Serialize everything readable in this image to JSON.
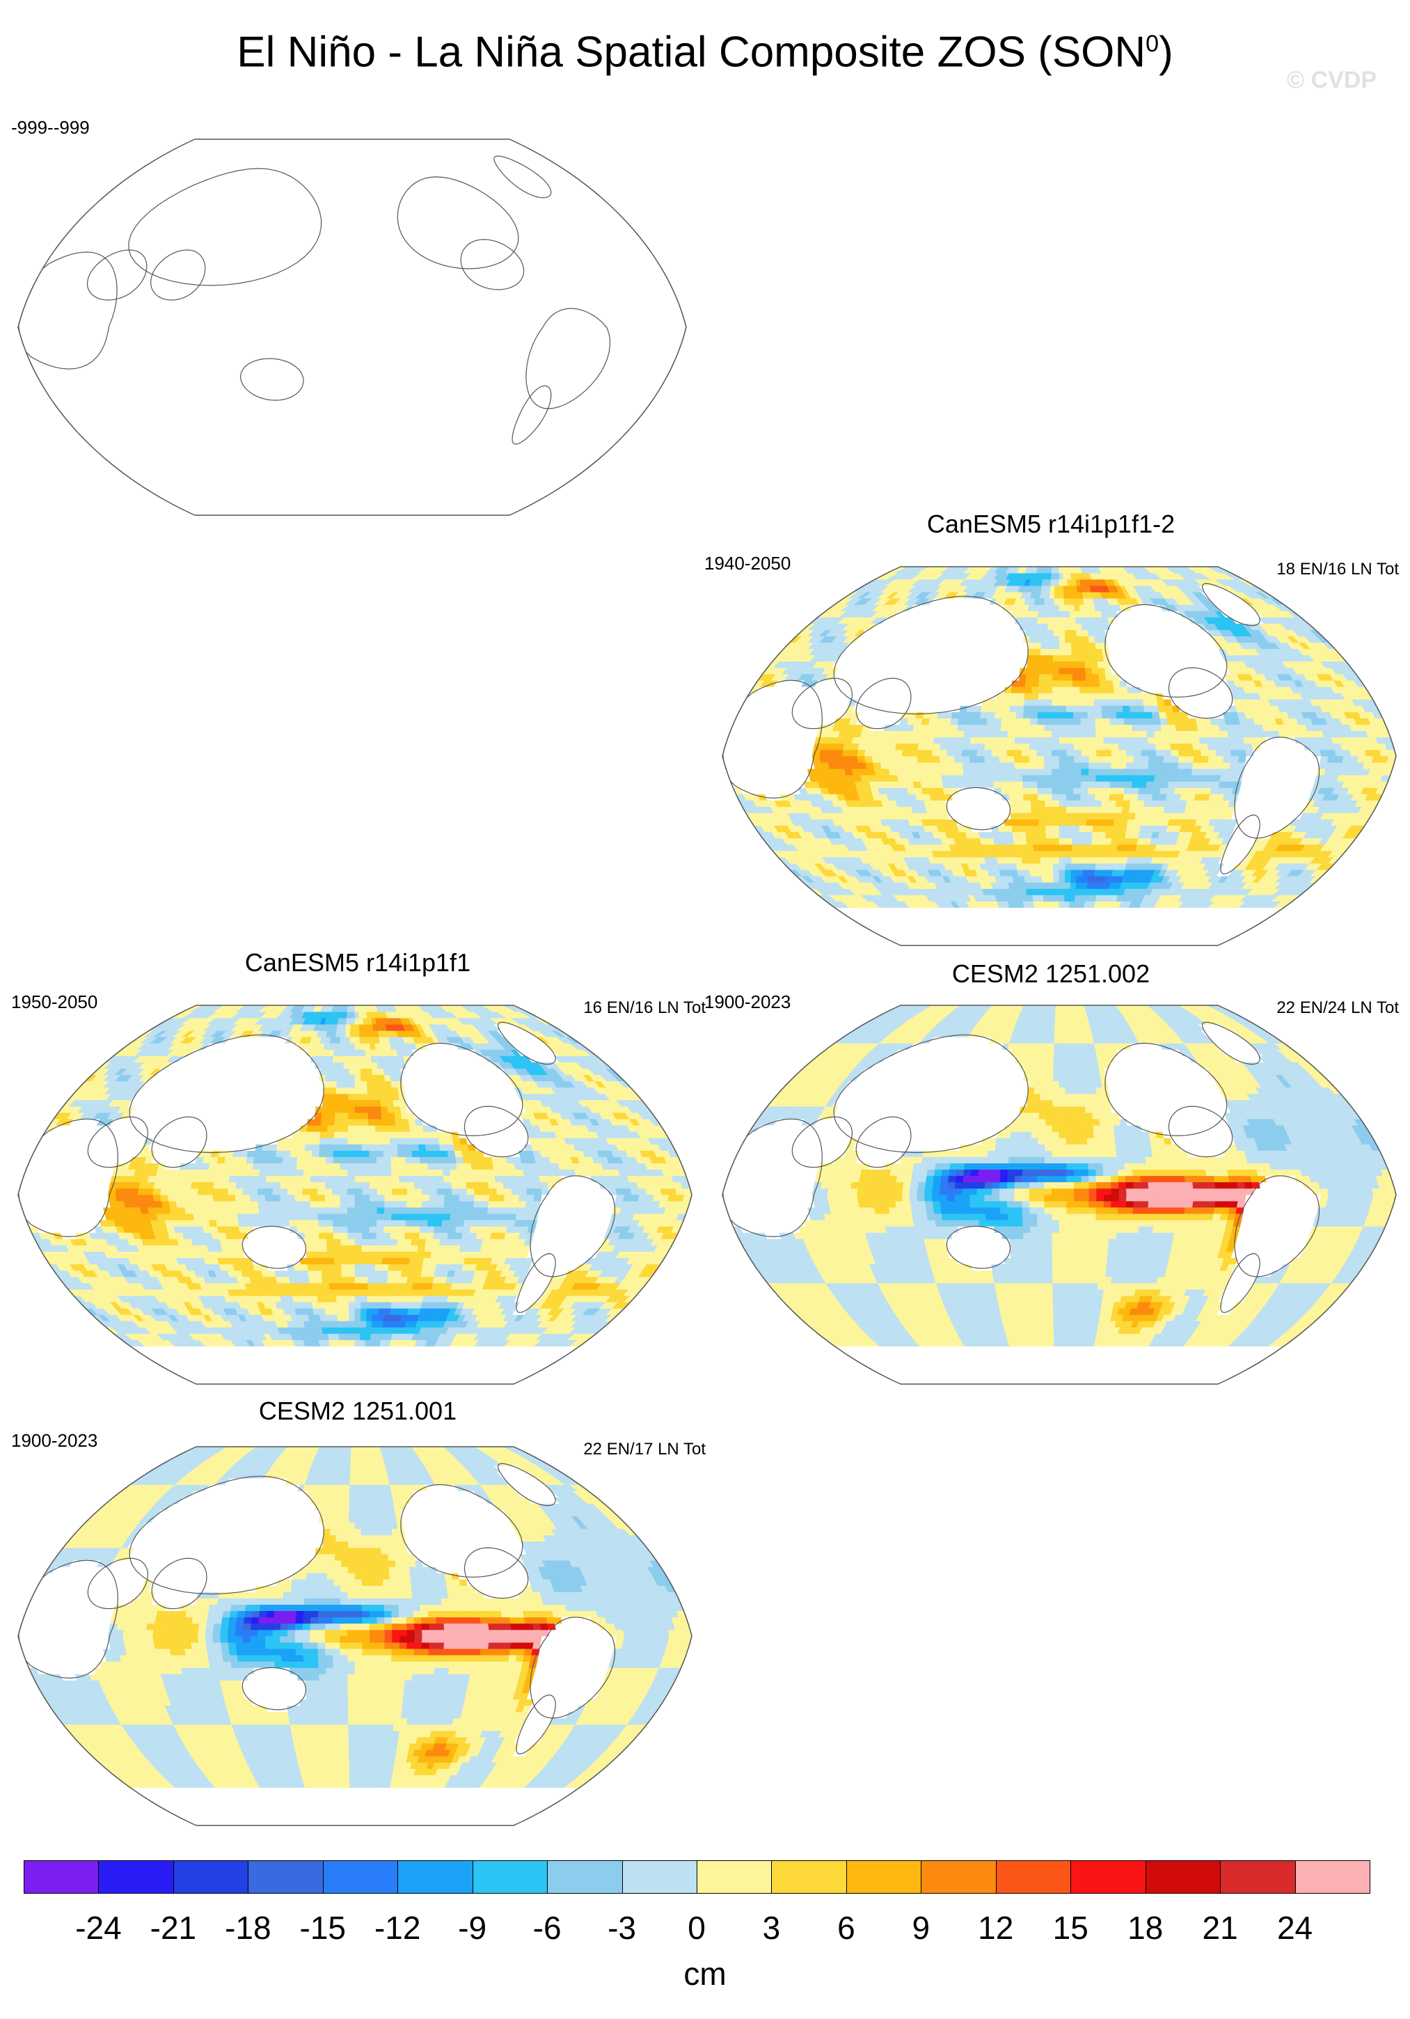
{
  "figure": {
    "title": "El Niño - La Niña Spatial Composite ZOS (SON",
    "title_sup": "0",
    "title_end": ")",
    "watermark": "© CVDP"
  },
  "chart_data": {
    "type": "heatmap",
    "title": "El Niño - La Niña Spatial Composite ZOS (SON0)",
    "projection": "Robinson, Pacific-centered global map",
    "units": "cm",
    "colorbar": {
      "ticks": [
        "-24",
        "-21",
        "-18",
        "-15",
        "-12",
        "-9",
        "-6",
        "-3",
        "0",
        "3",
        "6",
        "9",
        "12",
        "15",
        "18",
        "21",
        "24"
      ],
      "levels": [
        -24,
        -21,
        -18,
        -15,
        -12,
        -9,
        -6,
        -3,
        0,
        3,
        6,
        9,
        12,
        15,
        18,
        21,
        24
      ],
      "colors": [
        "#7b1ff0",
        "#2a1cf6",
        "#233fe6",
        "#3a6ae0",
        "#2a7df8",
        "#1aa2f8",
        "#2cc4f4",
        "#8ccdee",
        "#bde0f2",
        "#fdf59c",
        "#fcd838",
        "#fdb70f",
        "#fc8a0e",
        "#fc5616",
        "#fa1414",
        "#d20a0a",
        "#d82a2a",
        "#fcb0b4"
      ],
      "unit_label": "cm"
    },
    "panels": [
      {
        "id": "obs",
        "title": "",
        "period": "-999--999",
        "counts": "",
        "pattern": "blank"
      },
      {
        "id": "canesm5-14-2",
        "title": "CanESM5 r14i1p1f1-2",
        "period": "1940-2050",
        "counts": "18 EN/16 LN Tot",
        "pattern": "canesm"
      },
      {
        "id": "canesm5-14",
        "title": "CanESM5 r14i1p1f1",
        "period": "1950-2050",
        "counts": "16 EN/16 LN Tot",
        "pattern": "canesm"
      },
      {
        "id": "cesm2-002",
        "title": "CESM2 1251.002",
        "period": "1900-2023",
        "counts": "22 EN/24 LN Tot",
        "pattern": "cesm"
      },
      {
        "id": "cesm2-001",
        "title": "CESM2 1251.001",
        "period": "1900-2023",
        "counts": "22 EN/17 LN Tot",
        "pattern": "cesm"
      }
    ]
  }
}
